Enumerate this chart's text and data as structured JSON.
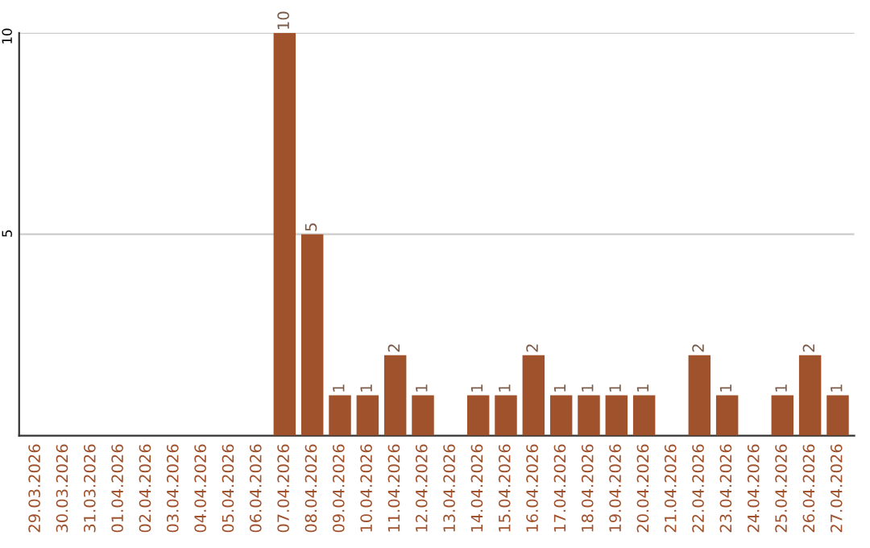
{
  "chart_data": {
    "type": "bar",
    "categories": [
      "29.03.2026",
      "30.03.2026",
      "31.03.2026",
      "01.04.2026",
      "02.04.2026",
      "03.04.2026",
      "04.04.2026",
      "05.04.2026",
      "06.04.2026",
      "07.04.2026",
      "08.04.2026",
      "09.04.2026",
      "10.04.2026",
      "11.04.2026",
      "12.04.2026",
      "13.04.2026",
      "14.04.2026",
      "15.04.2026",
      "16.04.2026",
      "17.04.2026",
      "18.04.2026",
      "19.04.2026",
      "20.04.2026",
      "21.04.2026",
      "22.04.2026",
      "23.04.2026",
      "24.04.2026",
      "25.04.2026",
      "26.04.2026",
      "27.04.2026"
    ],
    "values": [
      0,
      0,
      0,
      0,
      0,
      0,
      0,
      0,
      0,
      10,
      5,
      1,
      1,
      2,
      1,
      0,
      1,
      1,
      2,
      1,
      1,
      1,
      1,
      0,
      2,
      1,
      0,
      1,
      2,
      1
    ],
    "value_labels": [
      null,
      null,
      null,
      null,
      null,
      null,
      null,
      null,
      null,
      "10",
      "5",
      "1",
      "1",
      "2",
      "1",
      null,
      "1",
      "1",
      "2",
      "1",
      "1",
      "1",
      "1",
      null,
      "2",
      "1",
      null,
      "1",
      "2",
      "1"
    ],
    "color": "#a0522d",
    "ylim": [
      0,
      10
    ],
    "yticks": [
      5,
      10
    ],
    "grid": "y"
  }
}
